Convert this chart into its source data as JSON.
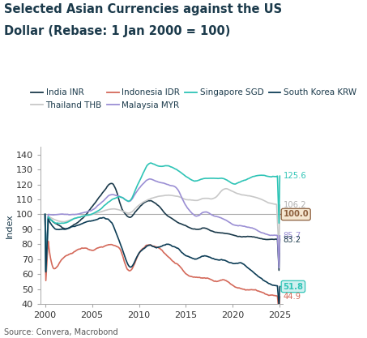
{
  "title_line1": "Selected Asian Currencies against the US",
  "title_line2": "Dollar (Rebase: 1 Jan 2000 = 100)",
  "ylabel": "Index",
  "source": "Source: Convera, Macrobond",
  "ylim": [
    40,
    145
  ],
  "yticks": [
    40,
    50,
    60,
    70,
    80,
    90,
    100,
    110,
    120,
    130,
    140
  ],
  "xlim_start": 1999.5,
  "xlim_end": 2025.3,
  "xtick_years": [
    2000,
    2005,
    2010,
    2015,
    2020,
    2025
  ],
  "colors": {
    "India INR": "#1b3a4b",
    "Thailand THB": "#c8c8c8",
    "Indonesia IDR": "#d4695a",
    "Malaysia MYR": "#9b8fd4",
    "Singapore SGD": "#2ec4b6",
    "South Korea KRW": "#0d3d56"
  },
  "end_labels": [
    {
      "val": 125.6,
      "text": "125.6",
      "color": "#2ec4b6",
      "box": false,
      "box_color": null
    },
    {
      "val": 106.2,
      "text": "106.2",
      "color": "#b0b0b0",
      "box": false,
      "box_color": null
    },
    {
      "val": 100.0,
      "text": "100.0",
      "color": "#8B5E3C",
      "box": true,
      "box_color": "#f5e6d0",
      "arrow_to": 100.0
    },
    {
      "val": 85.7,
      "text": "85.7",
      "color": "#9b8fd4",
      "box": false,
      "box_color": null
    },
    {
      "val": 83.2,
      "text": "83.2",
      "color": "#1b3a4b",
      "box": false,
      "box_color": null
    },
    {
      "val": 51.8,
      "text": "51.8",
      "color": "#2ec4b6",
      "box": true,
      "box_color": "#d0f0f0",
      "arrow_to": 51.8
    },
    {
      "val": 44.9,
      "text": "44.9",
      "color": "#d4695a",
      "box": false,
      "box_color": null
    }
  ],
  "background_color": "#ffffff",
  "title_color": "#1b3a4b",
  "title_fontsize": 10.5,
  "legend_fontsize": 7.5,
  "axis_fontsize": 8
}
